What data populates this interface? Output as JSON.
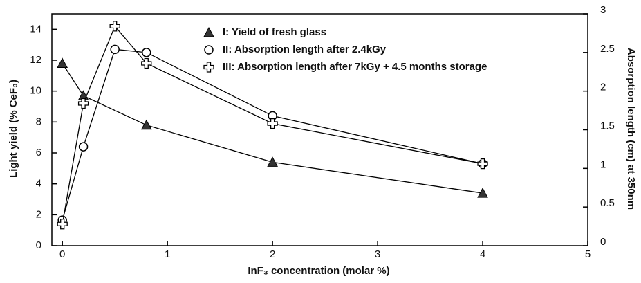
{
  "chart_data": {
    "type": "line",
    "xlabel": "InF₃ concentration (molar %)",
    "ylabel": "Light yield (% CeF₃)",
    "y2label": "Absorption length (cm) at 350nm",
    "xlim": [
      -0.1,
      5
    ],
    "xticks": [
      0,
      1,
      2,
      3,
      4,
      5
    ],
    "ylim": [
      0,
      15
    ],
    "yticks": [
      0,
      2,
      4,
      6,
      8,
      10,
      12,
      14
    ],
    "y2lim": [
      0,
      3
    ],
    "y2ticks": [
      0,
      0.5,
      1,
      1.5,
      2,
      2.5,
      3
    ],
    "series": [
      {
        "name": "I:  Yield of fresh glass",
        "color": "#000000",
        "marker": "triangle",
        "x": [
          0,
          0.2,
          0.8,
          2,
          4
        ],
        "values": [
          11.8,
          9.7,
          7.8,
          5.4,
          3.4
        ]
      },
      {
        "name": "II:  Absorption length after 2.4kGy",
        "color": "#000000",
        "marker": "circle",
        "axis": "y2",
        "x": [
          0,
          0.2,
          0.5,
          0.8,
          2,
          4
        ],
        "values": [
          0.33,
          1.28,
          2.54,
          2.5,
          1.68,
          1.06
        ]
      },
      {
        "name": "III: Absorption length after 7kGy + 4.5 months storage",
        "color": "#000000",
        "marker": "cross",
        "axis": "y2",
        "x": [
          0,
          0.2,
          0.5,
          0.8,
          2,
          4
        ],
        "values": [
          0.28,
          1.84,
          2.84,
          2.36,
          1.58,
          1.06
        ]
      }
    ]
  }
}
